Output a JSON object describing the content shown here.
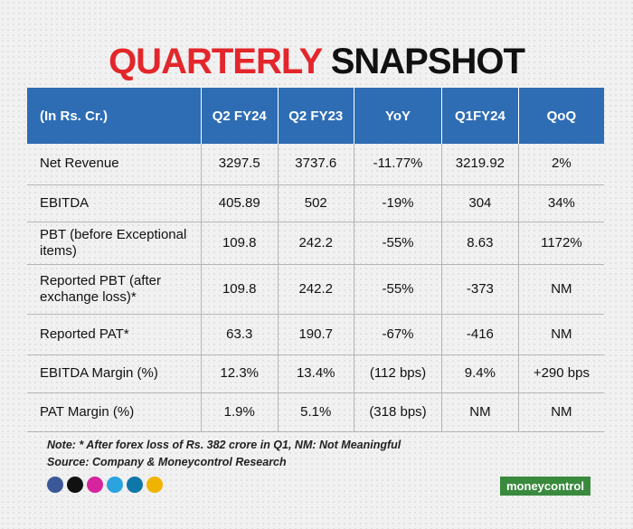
{
  "title": {
    "part1": "QUARTERLY",
    "part2": "SNAPSHOT"
  },
  "table": {
    "header": [
      "(In Rs. Cr.)",
      "Q2 FY24",
      "Q2 FY23",
      "YoY",
      "Q1FY24",
      "QoQ"
    ],
    "rows": [
      [
        "Net Revenue",
        "3297.5",
        "3737.6",
        "-11.77%",
        "3219.92",
        "2%"
      ],
      [
        "EBITDA",
        "405.89",
        "502",
        "-19%",
        "304",
        "34%"
      ],
      [
        "PBT (before Exceptional items)",
        "109.8",
        "242.2",
        "-55%",
        "8.63",
        "1172%"
      ],
      [
        "Reported PBT (after exchange loss)*",
        "109.8",
        "242.2",
        "-55%",
        "-373",
        "NM"
      ],
      [
        "Reported PAT*",
        "63.3",
        "190.7",
        "-67%",
        "-416",
        "NM"
      ],
      [
        "EBITDA Margin (%)",
        "12.3%",
        "13.4%",
        "(112 bps)",
        "9.4%",
        "+290 bps"
      ],
      [
        "PAT Margin (%)",
        "1.9%",
        "5.1%",
        "(318 bps)",
        "NM",
        "NM"
      ]
    ]
  },
  "notes": [
    "Note: * After forex loss of Rs. 382 crore in Q1, NM: Not Meaningful",
    "Source: Company & Moneycontrol Research"
  ],
  "logo": "moneycontrol"
}
